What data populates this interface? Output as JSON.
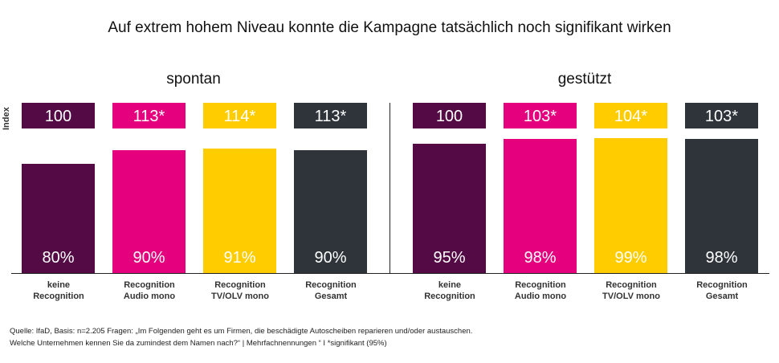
{
  "chart_data": {
    "type": "bar",
    "title": "Auf extrem hohem Niveau konnte die Kampagne tatsächlich noch signifikant wirken",
    "ylabel": "Index",
    "ylim": [
      0,
      100
    ],
    "groups": [
      {
        "name": "spontan",
        "categories": [
          "keine\nRecognition",
          "Recognition\nAudio mono",
          "Recognition\nTV/OLV mono",
          "Recognition\nGesamt"
        ],
        "values": [
          80,
          90,
          91,
          90
        ],
        "labels": [
          "80%",
          "90%",
          "91%",
          "90%"
        ],
        "index": [
          "100",
          "113*",
          "114*",
          "113*"
        ]
      },
      {
        "name": "gestützt",
        "categories": [
          "keine\nRecognition",
          "Recognition\nAudio mono",
          "Recognition\nTV/OLV mono",
          "Recognition\nGesamt"
        ],
        "values": [
          95,
          98,
          99,
          98
        ],
        "labels": [
          "95%",
          "98%",
          "99%",
          "98%"
        ],
        "index": [
          "100",
          "103*",
          "104*",
          "103*"
        ]
      }
    ],
    "colors": [
      "#530a45",
      "#e5007d",
      "#ffcc00",
      "#2e3439"
    ]
  },
  "footer": {
    "line1": "Quelle: IfaD, Basis: n=2.205    Fragen: „Im Folgenden geht es um Firmen, die beschädigte Autoscheiben reparieren und/oder austauschen.",
    "line2": "Welche Unternehmen kennen Sie da zumindest dem Namen nach?“ | Mehrfachnennungen “ I *signifikant (95%)"
  }
}
